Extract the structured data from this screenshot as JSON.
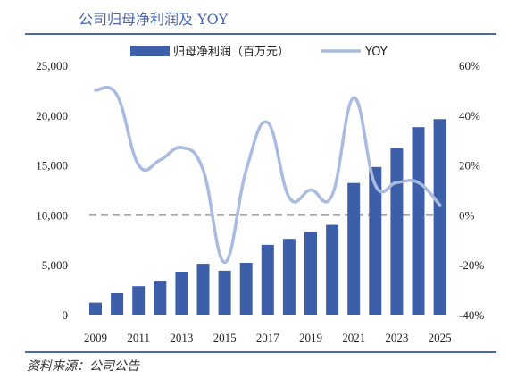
{
  "header": {
    "title": "公司归母净利润及 YOY"
  },
  "footer": {
    "source": "资料来源：公司公告"
  },
  "chart_data": {
    "type": "bar",
    "categories": [
      "2009",
      "2010",
      "2011",
      "2012",
      "2013",
      "2014",
      "2015",
      "2016",
      "2017",
      "2018",
      "2019",
      "2020",
      "2021",
      "2022",
      "2023",
      "2024",
      "2025"
    ],
    "x_tick_labels": [
      "2009",
      "2011",
      "2013",
      "2015",
      "2017",
      "2019",
      "2021",
      "2023",
      "2025"
    ],
    "series": [
      {
        "name": "归母净利润（百万元）",
        "type": "bar",
        "axis": "left",
        "color": "#3d5faa",
        "values": [
          1200,
          2150,
          2850,
          3400,
          4300,
          5100,
          4400,
          5200,
          7000,
          7600,
          8300,
          9000,
          13200,
          14800,
          16700,
          18800,
          19600
        ]
      },
      {
        "name": "YOY",
        "type": "line",
        "axis": "right",
        "color": "#a9bbe0",
        "values": [
          50,
          48,
          20,
          22,
          27,
          18,
          -19,
          18,
          37,
          7,
          10,
          8,
          47,
          12,
          13,
          13,
          4
        ]
      }
    ],
    "left_axis": {
      "min": 0,
      "max": 25000,
      "ticks": [
        "25,000",
        "20,000",
        "15,000",
        "10,000",
        "5,000",
        "0"
      ]
    },
    "right_axis": {
      "min": -40,
      "max": 60,
      "ticks": [
        "60%",
        "40%",
        "20%",
        "0%",
        "-20%",
        "-40%"
      ]
    },
    "reference_line": {
      "axis": "right",
      "value": 0,
      "style": "dashed",
      "color": "#999999"
    },
    "legend_position": "top-center"
  }
}
